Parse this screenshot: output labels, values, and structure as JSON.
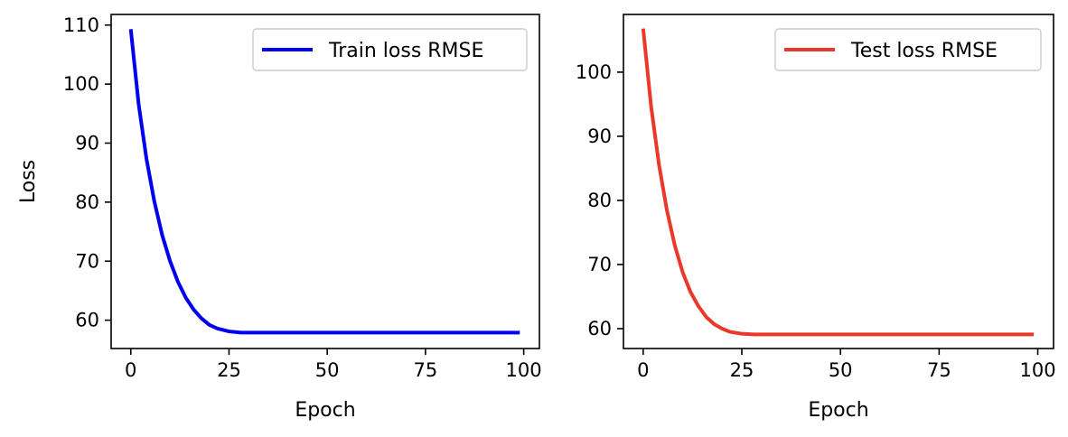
{
  "chart_data": [
    {
      "type": "line",
      "xlabel": "Epoch",
      "ylabel": "Loss",
      "xlim": [
        -5,
        104
      ],
      "ylim": [
        55.2,
        111.8
      ],
      "xticks": [
        0,
        25,
        50,
        75,
        100
      ],
      "yticks": [
        60,
        70,
        80,
        90,
        100,
        110
      ],
      "legend_position": "top-right",
      "grid": false,
      "series": [
        {
          "name": "Train loss RMSE",
          "color": "#0000ee",
          "x": [
            0,
            2,
            4,
            6,
            8,
            10,
            12,
            14,
            16,
            18,
            20,
            22,
            25,
            28,
            32,
            40,
            50,
            60,
            70,
            80,
            90,
            99
          ],
          "y": [
            109.3,
            96.6,
            87.3,
            80.1,
            74.4,
            70.0,
            66.5,
            63.8,
            61.8,
            60.3,
            59.2,
            58.6,
            58.1,
            57.9,
            57.9,
            57.9,
            57.9,
            57.9,
            57.9,
            57.9,
            57.9,
            57.9
          ]
        }
      ]
    },
    {
      "type": "line",
      "xlabel": "Epoch",
      "ylabel": "",
      "xlim": [
        -5,
        104
      ],
      "ylim": [
        56.9,
        109.0
      ],
      "xticks": [
        0,
        25,
        50,
        75,
        100
      ],
      "yticks": [
        60,
        70,
        80,
        90,
        100
      ],
      "legend_position": "top-right",
      "grid": false,
      "series": [
        {
          "name": "Test loss RMSE",
          "color": "#e8392b",
          "x": [
            0,
            2,
            4,
            6,
            8,
            10,
            12,
            14,
            16,
            18,
            20,
            22,
            25,
            28,
            32,
            40,
            50,
            60,
            70,
            80,
            90,
            99
          ],
          "y": [
            106.8,
            94.7,
            85.6,
            78.5,
            73.0,
            68.8,
            65.7,
            63.5,
            61.8,
            60.7,
            60.0,
            59.5,
            59.2,
            59.1,
            59.1,
            59.1,
            59.1,
            59.1,
            59.1,
            59.1,
            59.1,
            59.1
          ]
        }
      ]
    }
  ]
}
